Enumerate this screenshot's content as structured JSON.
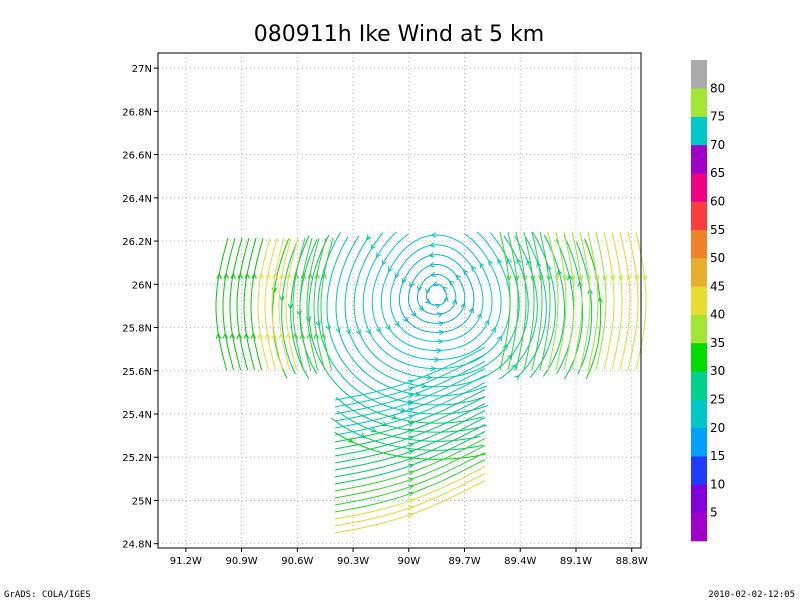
{
  "chart_data": {
    "type": "streamline",
    "title": "080911h Ike Wind at 5 km",
    "x_ticks": [
      "91.2W",
      "90.9W",
      "90.6W",
      "90.3W",
      "90W",
      "89.7W",
      "89.4W",
      "89.1W",
      "88.8W"
    ],
    "y_ticks": [
      "24.8N",
      "25N",
      "25.2N",
      "25.4N",
      "25.6N",
      "25.8N",
      "26N",
      "26.2N",
      "26.4N",
      "26.6N",
      "26.8N",
      "27N"
    ],
    "xlim": [
      -91.35,
      -88.75
    ],
    "ylim": [
      24.78,
      27.07
    ],
    "grid": true,
    "vortex_center": {
      "lon": -89.85,
      "lat": 25.95
    },
    "colorbar": {
      "labels": [
        "5",
        "10",
        "15",
        "20",
        "25",
        "30",
        "35",
        "40",
        "45",
        "50",
        "55",
        "60",
        "65",
        "70",
        "75",
        "80"
      ],
      "colors": [
        "#a000c8",
        "#8200dc",
        "#1e3cff",
        "#00a0ff",
        "#00c8c8",
        "#00d28c",
        "#00dc00",
        "#a0e632",
        "#e6dc32",
        "#e6af2d",
        "#f08228",
        "#fa3c3c",
        "#f00082",
        "#a000c8",
        "#00c8c8",
        "#a0e632",
        "#aaaaaa"
      ]
    }
  },
  "footer": {
    "left": "GrADS: COLA/IGES",
    "right": "2010-02-02-12:05"
  }
}
